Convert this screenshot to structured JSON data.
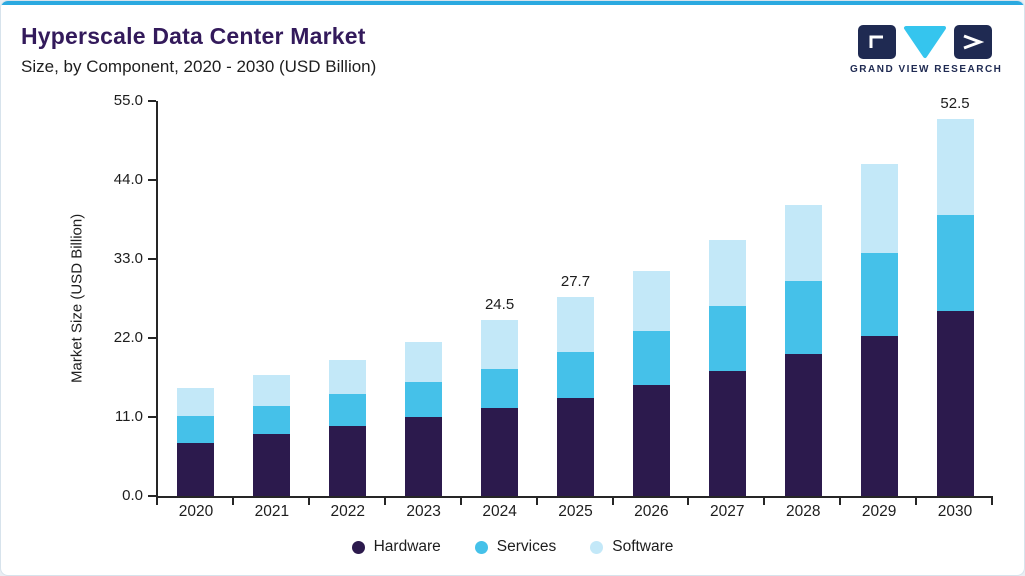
{
  "header": {
    "title": "Hyperscale Data Center Market",
    "subtitle": "Size, by Component, 2020 - 2030 (USD Billion)",
    "logo_text": "GRAND VIEW RESEARCH"
  },
  "colors": {
    "accent_line": "#2BA9E0",
    "title_text": "#331A5B",
    "axis": "#262626",
    "hardware": "#2C1A4D",
    "services": "#45C1E9",
    "software": "#C3E8F8",
    "logo_navy": "#1F2A52",
    "logo_cyan": "#35C5EE"
  },
  "chart_data": {
    "type": "bar",
    "stacked": true,
    "title": "Hyperscale Data Center Market Size, by Component, 2020 - 2030 (USD Billion)",
    "categories": [
      "2020",
      "2021",
      "2022",
      "2023",
      "2024",
      "2025",
      "2026",
      "2027",
      "2028",
      "2029",
      "2030"
    ],
    "series": [
      {
        "name": "Hardware",
        "color": "#2C1A4D",
        "values": [
          7.4,
          8.7,
          9.8,
          11.0,
          12.2,
          13.7,
          15.4,
          17.4,
          19.8,
          22.3,
          25.8
        ]
      },
      {
        "name": "Services",
        "color": "#45C1E9",
        "values": [
          3.7,
          3.9,
          4.4,
          4.9,
          5.5,
          6.3,
          7.6,
          9.0,
          10.2,
          11.5,
          13.3
        ]
      },
      {
        "name": "Software",
        "color": "#C3E8F8",
        "values": [
          4.0,
          4.3,
          4.8,
          5.6,
          6.8,
          7.7,
          8.4,
          9.2,
          10.5,
          12.4,
          13.4
        ]
      }
    ],
    "totals": [
      15.1,
      16.9,
      19.0,
      21.5,
      24.5,
      27.7,
      31.4,
      35.6,
      40.5,
      46.2,
      52.5
    ],
    "value_labels": {
      "2024": "24.5",
      "2025": "27.7",
      "2030": "52.5"
    },
    "xlabel": "",
    "ylabel": "Market Size (USD Billion)",
    "yticks": [
      "0.0",
      "11.0",
      "22.0",
      "33.0",
      "44.0",
      "55.0"
    ],
    "ylim": [
      0,
      55
    ],
    "grid": false,
    "legend_position": "bottom"
  }
}
